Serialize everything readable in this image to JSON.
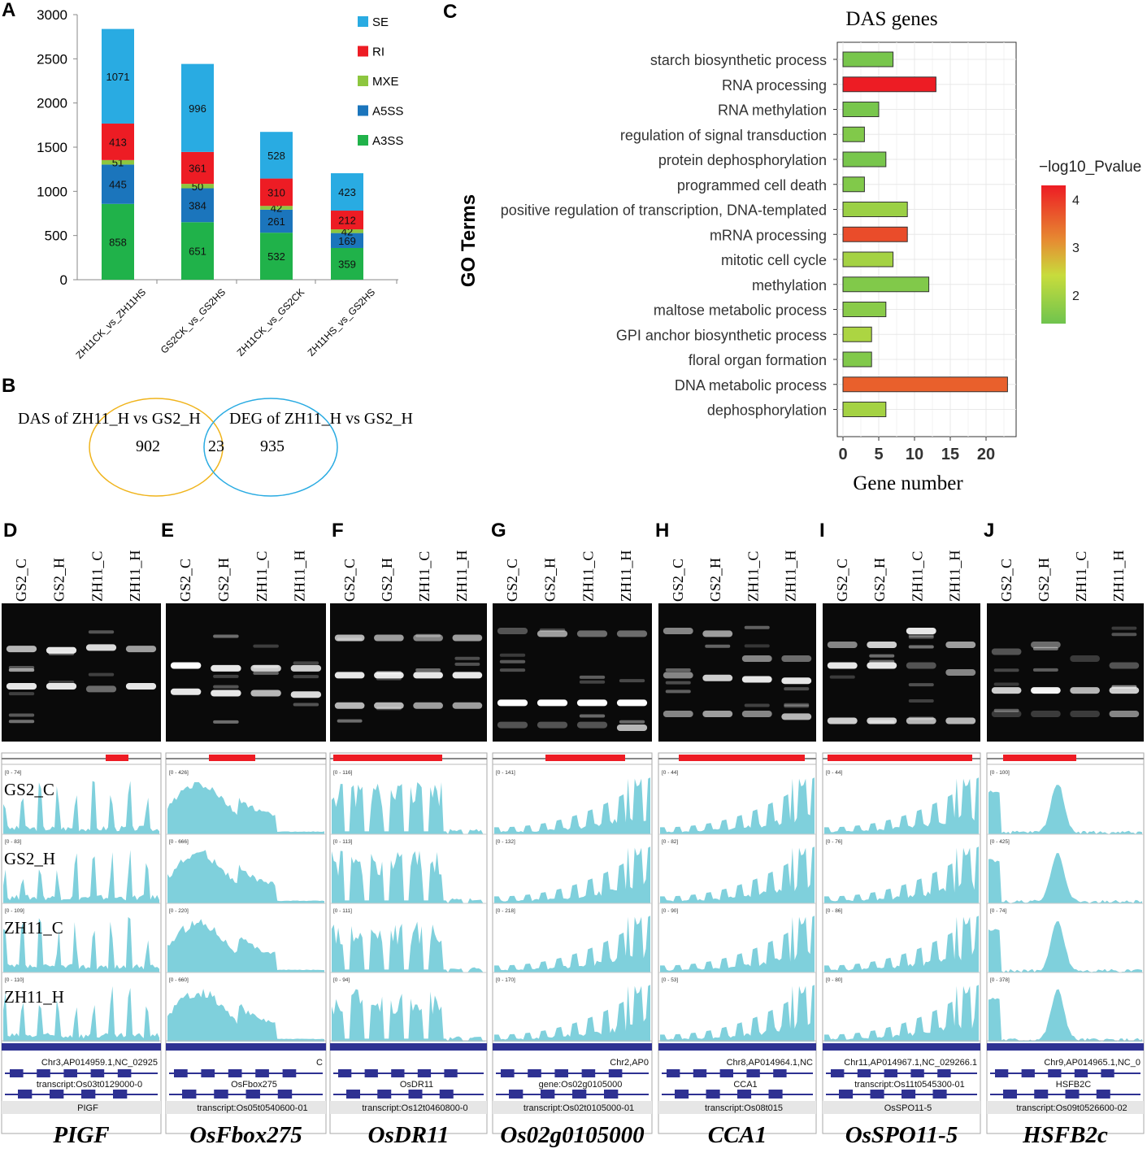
{
  "panel_labels": {
    "a": "A",
    "b": "B",
    "c": "C",
    "d": "D",
    "e": "E",
    "f": "F",
    "g": "G",
    "h": "H",
    "i": "I",
    "j": "J"
  },
  "colors": {
    "SE": "#29abe2",
    "RI": "#ed1c24",
    "MXE": "#8dc63f",
    "A5SS": "#1b75bc",
    "A3SS": "#20b24a",
    "coverage": "#7fd0dc",
    "gene_track": "#2e3192",
    "low": "#6fc44e",
    "mid": "#d6d93a",
    "high": "#ed1c24"
  },
  "chart_data": [
    {
      "id": "A",
      "type": "bar",
      "stacked": true,
      "categories": [
        "ZH11CK_vs_ZH11HS",
        "GS2CK_vs_GS2HS",
        "ZH11CK_vs_GS2CK",
        "ZH11HS_vs_GS2HS"
      ],
      "series": [
        {
          "name": "A3SS",
          "values": [
            858,
            651,
            532,
            359
          ]
        },
        {
          "name": "A5SS",
          "values": [
            445,
            384,
            261,
            169
          ]
        },
        {
          "name": "MXE",
          "values": [
            51,
            50,
            42,
            42
          ]
        },
        {
          "name": "RI",
          "values": [
            413,
            361,
            310,
            212
          ]
        },
        {
          "name": "SE",
          "values": [
            1071,
            996,
            528,
            423
          ]
        }
      ],
      "legend_order": [
        "SE",
        "RI",
        "MXE",
        "A5SS",
        "A3SS"
      ],
      "ylim": [
        0,
        3000
      ],
      "yticks": [
        0,
        500,
        1000,
        1500,
        2000,
        2500,
        3000
      ]
    },
    {
      "id": "C",
      "type": "bar",
      "orientation": "horizontal",
      "title": "DAS genes",
      "xlabel": "Gene number",
      "ylabel": "GO Terms",
      "categories": [
        "starch biosynthetic process",
        "RNA processing",
        "RNA methylation",
        "regulation of signal transduction",
        "protein dephosphorylation",
        "programmed cell death",
        "positive regulation of transcription, DNA-templated",
        "mRNA processing",
        "mitotic cell cycle",
        "methylation",
        "maltose metabolic process",
        "GPI anchor biosynthetic process",
        "floral organ formation",
        "DNA metabolic process",
        "dephosphorylation"
      ],
      "values": [
        7,
        13,
        5,
        3,
        6,
        3,
        9,
        9,
        7,
        12,
        6,
        4,
        4,
        23,
        6
      ],
      "neglog10p": [
        1.5,
        4.3,
        1.5,
        1.6,
        1.5,
        1.6,
        1.9,
        3.8,
        2.0,
        1.6,
        1.7,
        2.1,
        1.6,
        3.6,
        2.0
      ],
      "xlim": [
        0,
        24
      ],
      "xticks": [
        0,
        5,
        10,
        15,
        20
      ],
      "colorbar": {
        "title": "−log10_Pvalue",
        "ticks": [
          2,
          3,
          4
        ],
        "range": [
          1.4,
          4.3
        ]
      }
    }
  ],
  "venn": {
    "left_label": "DAS of ZH11_H vs GS2_H",
    "right_label": "DEG of ZH11_H vs GS2_H",
    "left_only": "902",
    "overlap": "23",
    "right_only": "935"
  },
  "gel_lanes": [
    "GS2_C",
    "GS2_H",
    "ZH11_C",
    "ZH11_H"
  ],
  "track_samples": [
    "GS2_C",
    "GS2_H",
    "ZH11_C",
    "ZH11_H"
  ],
  "genes": [
    {
      "panel": "D",
      "name": "PIGF",
      "ranges": [
        "[0 - 74]",
        "[0 - 83]",
        "[0 - 109]",
        "[0 - 110]"
      ],
      "chrom": "Chr3,AP014959.1,NC_02925",
      "line2": "transcript:Os03t0129000-0",
      "line3": "PIGF"
    },
    {
      "panel": "E",
      "name": "OsFbox275",
      "ranges": [
        "[0 - 426]",
        "[0 - 666]",
        "[0 - 220]",
        "[0 - 660]"
      ],
      "chrom": "C",
      "line2": "OsFbox275",
      "line3": "transcript:Os05t0540600-01"
    },
    {
      "panel": "F",
      "name": "OsDR11",
      "ranges": [
        "[0 - 116]",
        "[0 - 113]",
        "[0 - 111]",
        "[0 - 94]"
      ],
      "chrom": "",
      "line2": "OsDR11",
      "line3": "transcript:Os12t0460800-0"
    },
    {
      "panel": "G",
      "name": "Os02g0105000",
      "ranges": [
        "[0 - 141]",
        "[0 - 132]",
        "[0 - 218]",
        "[0 - 170]"
      ],
      "chrom": "Chr2,AP0",
      "line2": "gene:Os02g0105000",
      "line3": "transcript:Os02t0105000-01"
    },
    {
      "panel": "H",
      "name": "CCA1",
      "ranges": [
        "[0 - 44]",
        "[0 - 82]",
        "[0 - 90]",
        "[0 - 53]"
      ],
      "chrom": "Chr8,AP014964.1,NC",
      "line2": "CCA1",
      "line3": "transcript:Os08t015"
    },
    {
      "panel": "I",
      "name": "OsSPO11-5",
      "ranges": [
        "[0 - 44]",
        "[0 - 76]",
        "[0 - 86]",
        "[0 - 80]"
      ],
      "chrom": "Chr11,AP014967.1,NC_029266.1",
      "line2": "transcript:Os11t0545300-01",
      "line3": "OsSPO11-5"
    },
    {
      "panel": "J",
      "name": "HSFB2c",
      "ranges": [
        "[0 - 100]",
        "[0 - 425]",
        "[0 - 74]",
        "[0 - 378]"
      ],
      "chrom": "Chr9,AP014965.1,NC_0",
      "line2": "HSFB2C",
      "line3": "transcript:Os09t0526600-02"
    }
  ]
}
